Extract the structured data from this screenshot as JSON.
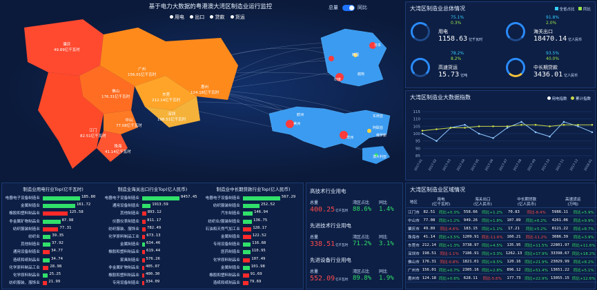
{
  "map": {
    "title": "基于电力大数据的粤港澳大湾区制造业运行监控",
    "legend": [
      "用电",
      "出口",
      "贷款",
      "货运"
    ],
    "toggle_left": "总量",
    "toggle_right": "同比",
    "regions": [
      {
        "name": "肇庆",
        "value": "49.89亿千瓦时"
      },
      {
        "name": "广州",
        "value": "156.01亿千瓦时"
      },
      {
        "name": "佛山",
        "value": "176.31亿千瓦时"
      },
      {
        "name": "东莞",
        "value": "212.14亿千瓦时"
      },
      {
        "name": "惠州",
        "value": "124.18亿千瓦时"
      },
      {
        "name": "深圳",
        "value": "198.51亿千瓦时"
      },
      {
        "name": "江门",
        "value": "82.51亿千瓦时"
      },
      {
        "name": "中山",
        "value": "77.08亿千瓦时"
      },
      {
        "name": "珠海",
        "value": "41.14亿千瓦时"
      }
    ],
    "china_labels": [
      "日本",
      "韩国",
      "越南",
      "印度"
    ],
    "world_labels": [
      "东南亚",
      "美洲",
      "欧洲",
      "阿联酋",
      "非洲",
      "俄罗斯",
      "澳大利亚"
    ]
  },
  "overview": {
    "title": "大湾区制造业总体情况",
    "legend": [
      "全省占比",
      "同比"
    ],
    "items": [
      {
        "name": "用电",
        "value": "1158.63",
        "unit": "亿千瓦时",
        "share": "75.1%",
        "yoy": "0.3%"
      },
      {
        "name": "海关出口",
        "value": "18470.14",
        "unit": "亿人民币",
        "share": "91.8%",
        "yoy": "2.0%"
      },
      {
        "name": "高速货运",
        "value": "15.73",
        "unit": "亿吨",
        "share": "78.2%",
        "yoy": "8.2%"
      },
      {
        "name": "中长期贷款",
        "value": "3436.01",
        "unit": "亿人民币",
        "share": "93.5%",
        "yoy": "40.0%"
      }
    ]
  },
  "index": {
    "title": "大湾区制造业大数据指数",
    "legend": [
      "用电指数",
      "累计指数"
    ],
    "yticks": [
      "115",
      "110",
      "105",
      "100",
      "95",
      "90",
      "85"
    ],
    "xticks": [
      "2017-01",
      "2017-02",
      "2017-03",
      "2017-04",
      "2017-05",
      "2017-06",
      "2017-07",
      "2017-08",
      "2017-09",
      "2017-10",
      "2017-11",
      "2017-12",
      "2018-01"
    ]
  },
  "chart_data": {
    "type": "line",
    "ylim": [
      85,
      115
    ],
    "x": [
      "2017-01",
      "2017-02",
      "2017-03",
      "2017-04",
      "2017-05",
      "2017-06",
      "2017-07",
      "2017-08",
      "2017-09",
      "2017-10",
      "2017-11",
      "2017-12",
      "2018-01"
    ],
    "series": [
      {
        "name": "用电指数",
        "values": [
          100,
          95,
          104,
          106,
          100,
          97,
          104,
          108,
          101,
          98,
          108,
          105,
          101
        ]
      },
      {
        "name": "累计指数",
        "values": [
          102,
          103,
          104,
          104,
          105,
          105,
          105,
          106,
          106,
          105,
          106,
          106,
          106
        ]
      }
    ]
  },
  "ranks": [
    {
      "title": "制造业用电行业Top(亿千瓦时)",
      "max": 185.8,
      "rows": [
        {
          "label": "电器电子设备制造业",
          "value": "185.80",
          "color": "#31e06a"
        },
        {
          "label": "金属制造业",
          "value": "161.72",
          "color": "#31e06a"
        },
        {
          "label": "橡胶和塑料制品业",
          "value": "125.58",
          "color": "#ff2a2a"
        },
        {
          "label": "非金属矿物制品业",
          "value": "87.98",
          "color": "#31e06a"
        },
        {
          "label": "纺织服装制造业",
          "value": "77.31",
          "color": "#ff2a2a"
        },
        {
          "label": "纺织业",
          "value": "39.35",
          "color": "#31e06a"
        },
        {
          "label": "其他制造业",
          "value": "37.92",
          "color": "#31e06a"
        },
        {
          "label": "通用设备制造业",
          "value": "34.77",
          "color": "#ff2a2a"
        },
        {
          "label": "造纸和纸制品业",
          "value": "34.74",
          "color": "#31e06a"
        },
        {
          "label": "化学原料制品工业",
          "value": "28.98",
          "color": "#ff2a2a"
        },
        {
          "label": "化学原料制品业",
          "value": "25.25",
          "color": "#31e06a"
        },
        {
          "label": "纺织服装、服饰业",
          "value": "21.99",
          "color": "#ff2a2a"
        }
      ]
    },
    {
      "title": "制造业海关出口行业Top(亿人民币)",
      "max": 8457.45,
      "rows": [
        {
          "label": "电器电子设备制造业",
          "value": "8457.45",
          "color": "#31e06a"
        },
        {
          "label": "通用设备制造业",
          "value": "1913.59",
          "color": "#31e06a"
        },
        {
          "label": "其他制造业",
          "value": "893.12",
          "color": "#ff2a2a"
        },
        {
          "label": "仪器仪表制造业",
          "value": "811.17",
          "color": "#ff2a2a"
        },
        {
          "label": "纺织服装、服饰业",
          "value": "782.49",
          "color": "#ff2a2a"
        },
        {
          "label": "化学原料制品工业",
          "value": "673.13",
          "color": "#ff2a2a"
        },
        {
          "label": "金属制造业",
          "value": "634.46",
          "color": "#31e06a"
        },
        {
          "label": "橡胶和塑料制品业",
          "value": "619.44",
          "color": "#ff2a2a"
        },
        {
          "label": "家具制造业",
          "value": "576.26",
          "color": "#ff2a2a"
        },
        {
          "label": "非金属矿物制品业",
          "value": "405.07",
          "color": "#ff2a2a"
        },
        {
          "label": "橡胶和塑料制品业",
          "value": "400.30",
          "color": "#ff2a2a"
        },
        {
          "label": "专用设备制造业",
          "value": "334.09",
          "color": "#ff2a2a"
        }
      ]
    },
    {
      "title": "制造业中长期贷款行业Top(亿人民币)",
      "max": 567.29,
      "rows": [
        {
          "label": "电器电子设备制造业",
          "value": "567.29",
          "color": "#31e06a"
        },
        {
          "label": "纺织服装制造业",
          "value": "252.52",
          "color": "#31e06a"
        },
        {
          "label": "汽车制造业",
          "value": "146.94",
          "color": "#31e06a"
        },
        {
          "label": "纺织业/服装制造业",
          "value": "136.75",
          "color": "#31e06a"
        },
        {
          "label": "石油和天然气加工业",
          "value": "128.17",
          "color": "#ff2a2a"
        },
        {
          "label": "金属制造业",
          "value": "122.52",
          "color": "#ff2a2a"
        },
        {
          "label": "专用设备制造业",
          "value": "116.68",
          "color": "#31e06a"
        },
        {
          "label": "医药制造业",
          "value": "110.95",
          "color": "#31e06a"
        },
        {
          "label": "化学原料制品业",
          "value": "107.49",
          "color": "#ff2a2a"
        },
        {
          "label": "金属制造业",
          "value": "101.98",
          "color": "#31e06a"
        },
        {
          "label": "橡胶和塑料制品业",
          "value": "91.69",
          "color": "#ff2a2a"
        },
        {
          "label": "造纸和纸制品业",
          "value": "79.69",
          "color": "#ff2a2a"
        }
      ]
    }
  ],
  "hightech": [
    {
      "title": "高技术行业用电",
      "total_label": "总量",
      "share_label": "湾区占比",
      "yoy_label": "同比",
      "total": "400.25",
      "unit": "亿千瓦时",
      "share": "88.6%",
      "yoy": "1.4%"
    },
    {
      "title": "先进技术行业用电",
      "total_label": "总量",
      "share_label": "湾区占比",
      "yoy_label": "同比",
      "total": "338.51",
      "unit": "亿千瓦时",
      "share": "71.2%",
      "yoy": "3.1%"
    },
    {
      "title": "先进设备行业用电",
      "total_label": "总量",
      "share_label": "湾区占比",
      "yoy_label": "同比",
      "total": "552.09",
      "unit": "亿千瓦时",
      "share": "89.8%",
      "yoy": "1.9%"
    }
  ],
  "regions_table": {
    "title": "大湾区制造业区域情况",
    "headers": [
      "地区",
      "用电\n(亿千瓦时)",
      "海关出口\n(亿人民币)",
      "中长期贷款\n(亿人民币)",
      "高速货运\n(万吨)"
    ],
    "rows": [
      [
        "江门市",
        "82.51",
        "同比+0.3%",
        "558.66",
        "同比+1.2%",
        "70.83",
        "同比-8.4%",
        "5986.11",
        "同比+5.9%"
      ],
      [
        "中山市",
        "77.08",
        "同比+1.2%",
        "949.26",
        "同比+1.8%",
        "107.89",
        "同比+6.2%",
        "4261.06",
        "同比+9.9%"
      ],
      [
        "肇庆市",
        "49.89",
        "同比-4.6%",
        "183.15",
        "同比+1.1%",
        "17.21",
        "同比+5.2%",
        "8121.22",
        "同比+8.7%"
      ],
      [
        "珠海市",
        "41.14",
        "同比+3.5%",
        "1209.91",
        "同比-11.6%",
        "160.21",
        "同比-11.2%",
        "3086.39",
        "同比+3.9%"
      ],
      [
        "东莞市",
        "212.14",
        "同比+1.3%",
        "3738.97",
        "同比+4.5%",
        "135.95",
        "同比+11.5%",
        "22801.97",
        "同比+11.6%"
      ],
      [
        "深圳市",
        "198.51",
        "同比-1.1%",
        "7186.91",
        "同比+3.3%",
        "1262.13",
        "同比+17.9%",
        "33398.67",
        "同比+18.2%"
      ],
      [
        "佛山市",
        "176.31",
        "同比-0.8%",
        "1821.01",
        "同比+9.5%",
        "120.16",
        "同比+21.9%",
        "23029.99",
        "同比+8.2%"
      ],
      [
        "广州市",
        "156.01",
        "同比+0.7%",
        "2305.16",
        "同比+2.8%",
        "896.12",
        "同比+51.4%",
        "13651.22",
        "同比+5.1%"
      ],
      [
        "惠州市",
        "124.18",
        "同比+0.6%",
        "628.11",
        "同比-5.6%",
        "177.73",
        "同比+22.9%",
        "13055.15",
        "同比+12.6%"
      ]
    ]
  }
}
